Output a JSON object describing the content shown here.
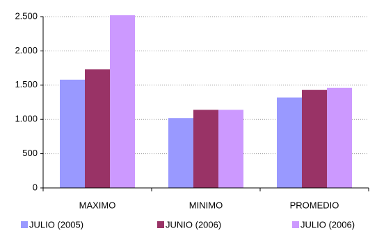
{
  "chart_data": {
    "type": "bar",
    "categories": [
      "MAXIMO",
      "MINIMO",
      "PROMEDIO"
    ],
    "series": [
      {
        "name": "JULIO (2005)",
        "color": "#9999ff",
        "values": [
          1580,
          1020,
          1320
        ]
      },
      {
        "name": "JUNIO (2006)",
        "color": "#993366",
        "values": [
          1730,
          1140,
          1430
        ]
      },
      {
        "name": "JULIO (2006)",
        "color": "#cc99ff",
        "values": [
          2520,
          1140,
          1460
        ]
      }
    ],
    "ylim": [
      0,
      2500
    ],
    "yticks": [
      0,
      500,
      {
        "value": 1000,
        "label": "1.000"
      },
      {
        "value": 1500,
        "label": "1.500"
      },
      {
        "value": 2000,
        "label": "2.000"
      },
      {
        "value": 2500,
        "label": "2.500"
      }
    ],
    "grid": true,
    "legend": "bottom"
  }
}
